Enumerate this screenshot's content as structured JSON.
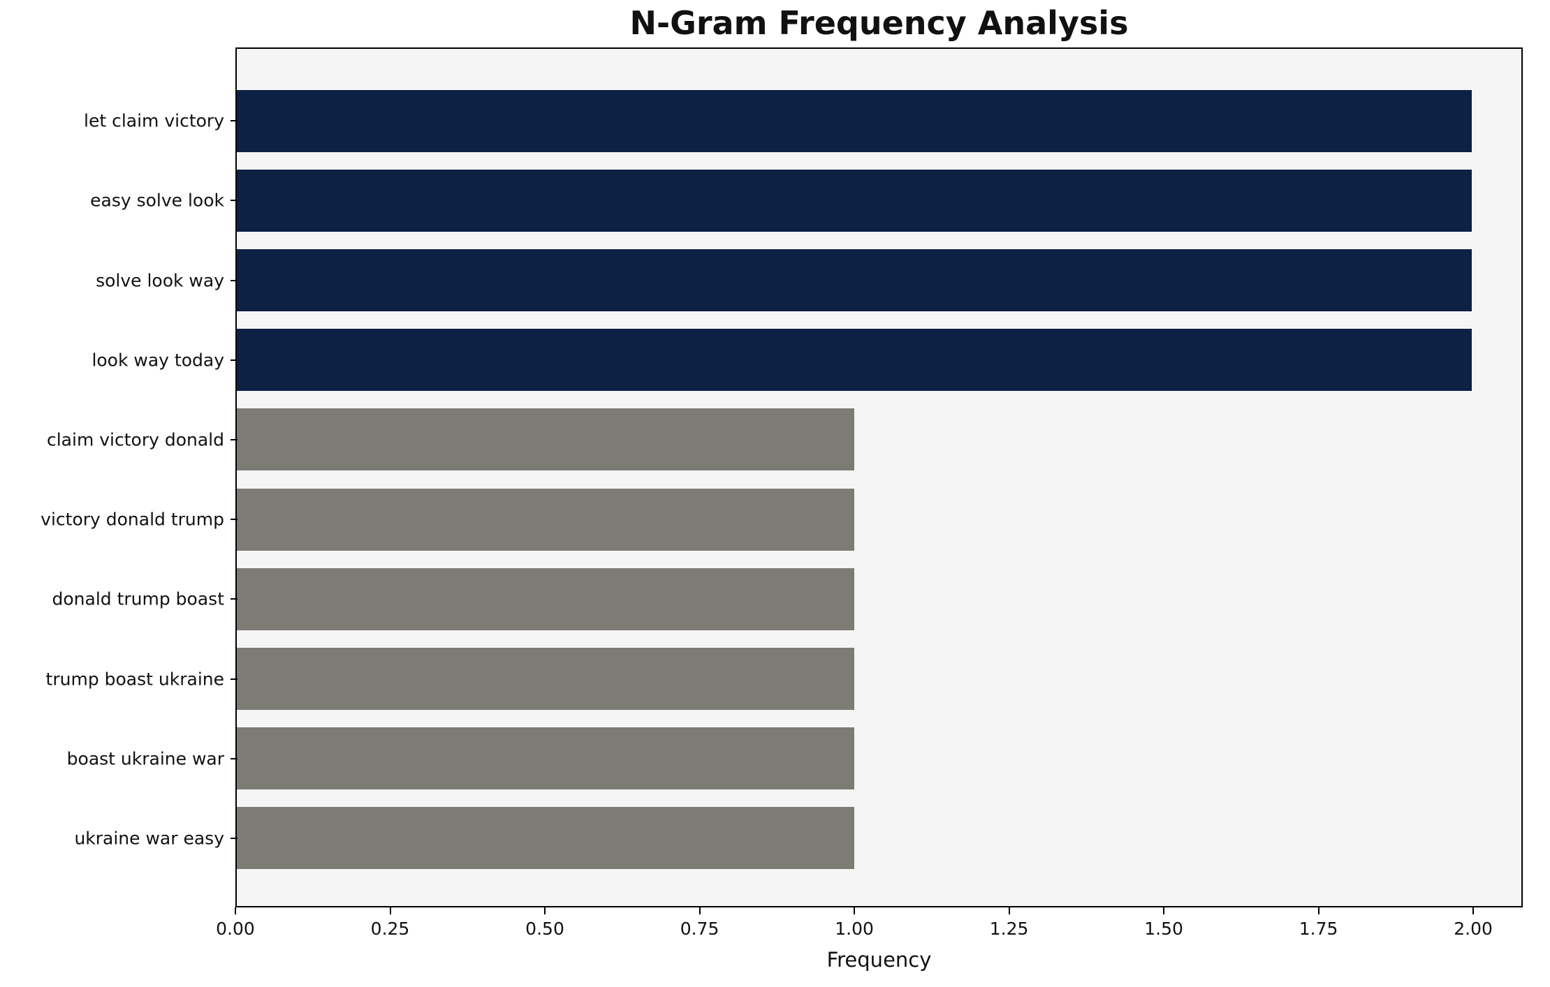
{
  "chart_data": {
    "type": "bar",
    "orientation": "horizontal",
    "title": "N-Gram Frequency Analysis",
    "xlabel": "Frequency",
    "ylabel": "",
    "categories": [
      "let claim victory",
      "easy solve look",
      "solve look way",
      "look way today",
      "claim victory donald",
      "victory donald trump",
      "donald trump boast",
      "trump boast ukraine",
      "boast ukraine war",
      "ukraine war easy"
    ],
    "values": [
      2,
      2,
      2,
      2,
      1,
      1,
      1,
      1,
      1,
      1
    ],
    "bar_colors": [
      "#0d2144",
      "#0d2144",
      "#0d2144",
      "#0d2144",
      "#7d7c74",
      "#7d7c74",
      "#7d7c74",
      "#7d7c74",
      "#7d7c74",
      "#7d7c74"
    ],
    "xlim": [
      0,
      2.08
    ],
    "xticks": [
      0,
      0.25,
      0.5,
      0.75,
      1.0,
      1.25,
      1.5,
      1.75,
      2.0
    ],
    "xtick_labels": [
      "0.00",
      "0.25",
      "0.50",
      "0.75",
      "1.00",
      "1.25",
      "1.50",
      "1.75",
      "2.00"
    ],
    "grid": false,
    "legend": null,
    "colors": {
      "high_freq_bar": "#0d2144",
      "low_freq_bar": "#7d7c74",
      "plot_background": "#f5f5f5",
      "figure_background": "#ffffff",
      "axis": "#000000"
    }
  }
}
